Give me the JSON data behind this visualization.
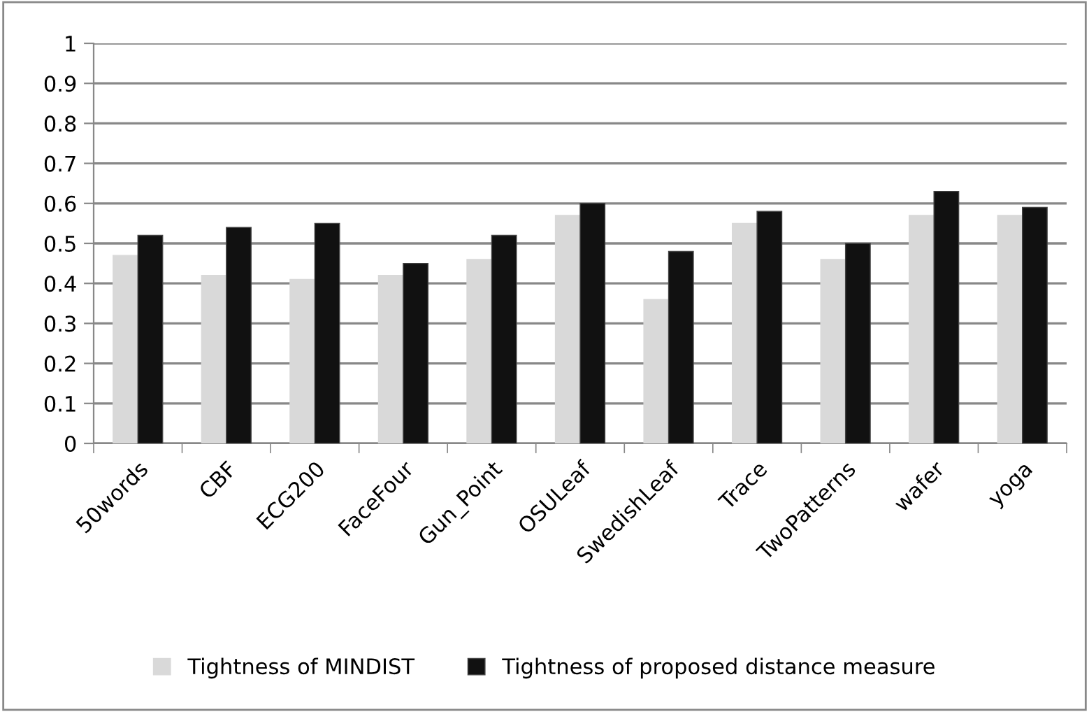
{
  "chart_data": {
    "type": "bar",
    "categories": [
      "50words",
      "CBF",
      "ECG200",
      "FaceFour",
      "Gun_Point",
      "OSULeaf",
      "SwedishLeaf",
      "Trace",
      "TwoPatterns",
      "wafer",
      "yoga"
    ],
    "series": [
      {
        "name": "Tightness of MINDIST",
        "color": "#d9d9d9",
        "values": [
          0.47,
          0.42,
          0.41,
          0.42,
          0.46,
          0.57,
          0.36,
          0.55,
          0.46,
          0.57,
          0.57
        ]
      },
      {
        "name": "Tightness of proposed distance measure",
        "color": "#111111",
        "values": [
          0.52,
          0.54,
          0.55,
          0.45,
          0.52,
          0.6,
          0.48,
          0.58,
          0.5,
          0.63,
          0.59
        ]
      }
    ],
    "ylim": [
      0,
      1
    ],
    "yticks": [
      0,
      0.1,
      0.2,
      0.3,
      0.4,
      0.5,
      0.6,
      0.7,
      0.8,
      0.9,
      1
    ],
    "grid": "y",
    "legend": "bottom"
  }
}
